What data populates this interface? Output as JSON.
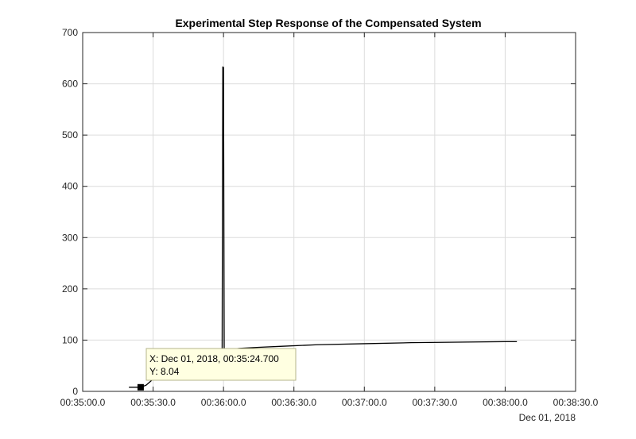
{
  "chart_data": {
    "type": "line",
    "title": "Experimental Step Response of the Compensated System",
    "xlabel": "",
    "ylabel": "",
    "date_label": "Dec 01, 2018",
    "x_ticks": [
      "00:35:00.0",
      "00:35:30.0",
      "00:36:00.0",
      "00:36:30.0",
      "00:37:00.0",
      "00:37:30.0",
      "00:38:00.0",
      "00:38:30.0"
    ],
    "y_ticks": [
      0,
      100,
      200,
      300,
      400,
      500,
      600,
      700
    ],
    "xlim": [
      "00:35:00.0",
      "00:38:30.0"
    ],
    "ylim": [
      0,
      700
    ],
    "grid": true,
    "series": [
      {
        "color": "#000000",
        "x": [
          "00:35:19.7",
          "00:35:24.7",
          "00:35:27.0",
          "00:35:29.0",
          "00:35:31.0",
          "00:35:33.0",
          "00:35:35.0",
          "00:35:37.0",
          "00:35:40.0",
          "00:35:45.0",
          "00:35:50.0",
          "00:35:55.0",
          "00:35:59.4",
          "00:35:59.7",
          "00:36:00.0",
          "00:36:00.3",
          "00:36:00.6",
          "00:36:01.0",
          "00:36:03.0",
          "00:36:07.0",
          "00:36:15.0",
          "00:36:25.0",
          "00:36:40.0",
          "00:37:00.0",
          "00:37:20.0",
          "00:37:40.0",
          "00:38:00.0",
          "00:38:05.0"
        ],
        "y": [
          8,
          8.04,
          12,
          20,
          28,
          35,
          40,
          44,
          48,
          52,
          55,
          57,
          58,
          633,
          632,
          70,
          75,
          80,
          82,
          84,
          86,
          88,
          91,
          93,
          95,
          96,
          97,
          97
        ]
      }
    ],
    "datatip": {
      "point": {
        "x": "00:35:24.7",
        "y": 8.04
      },
      "line1": "X: Dec 01, 2018, 00:35:24.700",
      "line2": "Y: 8.04"
    }
  }
}
